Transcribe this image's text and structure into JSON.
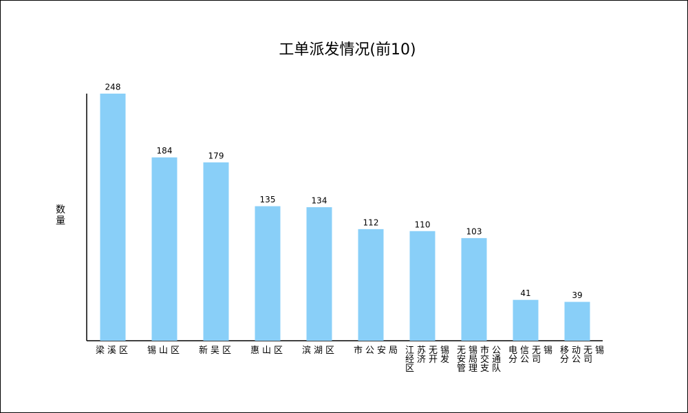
{
  "chart_data": {
    "type": "bar",
    "title": "工单派发情况(前10)",
    "y_label": "数量",
    "categories": [
      "梁溪区",
      "锡山区",
      "新吴区",
      "惠山区",
      "滨湖区",
      "市公安局",
      "江苏无锡经济开发区",
      "无锡市公安局交通管理支队",
      "电信无锡分公司",
      "移动无锡分公司"
    ],
    "values": [
      248,
      184,
      179,
      135,
      134,
      112,
      110,
      103,
      41,
      39
    ],
    "color": "#89cff8",
    "ylim": [
      0,
      248
    ]
  }
}
